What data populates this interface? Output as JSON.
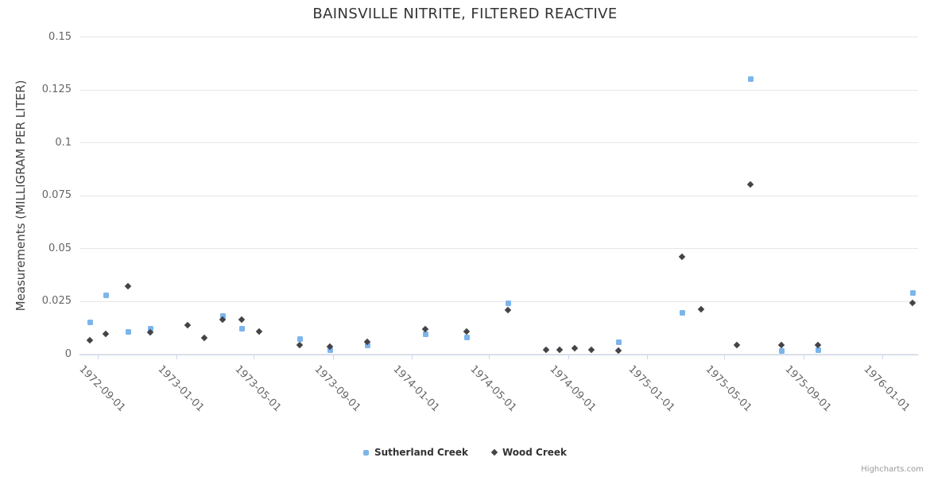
{
  "title": "BAINSVILLE NITRITE, FILTERED REACTIVE",
  "credits": "Highcharts.com",
  "chart_data": {
    "type": "scatter",
    "title": "BAINSVILLE NITRITE, FILTERED REACTIVE",
    "xlabel": "",
    "ylabel": "Measurements (MILLIGRAM PER LITER)",
    "x_type": "datetime",
    "ylim": [
      0,
      0.15
    ],
    "grid": "horizontal-only",
    "legend_position": "bottom-center",
    "y_ticks": [
      {
        "value": 0,
        "label": "0"
      },
      {
        "value": 0.025,
        "label": "0.025"
      },
      {
        "value": 0.05,
        "label": "0.05"
      },
      {
        "value": 0.075,
        "label": "0.075"
      },
      {
        "value": 0.1,
        "label": "0.1"
      },
      {
        "value": 0.125,
        "label": "0.125"
      },
      {
        "value": 0.15,
        "label": "0.15"
      }
    ],
    "x_ticks": [
      "1972-09-01",
      "1973-01-01",
      "1973-05-01",
      "1973-09-01",
      "1974-01-01",
      "1974-05-01",
      "1974-09-01",
      "1975-01-01",
      "1975-05-01",
      "1975-09-01",
      "1976-01-01"
    ],
    "series": [
      {
        "name": "Sutherland Creek",
        "color": "#7cb5ec",
        "marker": "square",
        "data": [
          [
            "1972-08-20",
            0.015
          ],
          [
            "1972-09-13",
            0.028
          ],
          [
            "1972-10-18",
            0.0105
          ],
          [
            "1972-11-22",
            0.012
          ],
          [
            "1973-03-14",
            0.018
          ],
          [
            "1973-04-12",
            0.012
          ],
          [
            "1973-07-11",
            0.007
          ],
          [
            "1973-08-27",
            0.002
          ],
          [
            "1973-10-25",
            0.004
          ],
          [
            "1974-01-23",
            0.0095
          ],
          [
            "1974-03-27",
            0.008
          ],
          [
            "1974-05-31",
            0.024
          ],
          [
            "1974-11-18",
            0.0055
          ],
          [
            "1975-02-25",
            0.0195
          ],
          [
            "1975-06-11",
            0.13
          ],
          [
            "1975-07-29",
            0.0015
          ],
          [
            "1975-09-24",
            0.002
          ],
          [
            "1976-02-17",
            0.029
          ]
        ]
      },
      {
        "name": "Wood Creek",
        "color": "#434348",
        "marker": "diamond",
        "data": [
          [
            "1972-08-20",
            0.0065
          ],
          [
            "1972-09-13",
            0.0095
          ],
          [
            "1972-10-18",
            0.032
          ],
          [
            "1972-11-22",
            0.01
          ],
          [
            "1973-01-19",
            0.0135
          ],
          [
            "1973-02-14",
            0.0075
          ],
          [
            "1973-03-14",
            0.016
          ],
          [
            "1973-04-12",
            0.016
          ],
          [
            "1973-05-10",
            0.0105
          ],
          [
            "1973-07-11",
            0.004
          ],
          [
            "1973-08-27",
            0.0035
          ],
          [
            "1973-10-25",
            0.0055
          ],
          [
            "1974-01-23",
            0.0115
          ],
          [
            "1974-03-27",
            0.0105
          ],
          [
            "1974-05-31",
            0.0205
          ],
          [
            "1974-07-29",
            0.002
          ],
          [
            "1974-08-19",
            0.002
          ],
          [
            "1974-09-11",
            0.0025
          ],
          [
            "1974-10-07",
            0.002
          ],
          [
            "1974-11-18",
            0.0015
          ],
          [
            "1975-02-25",
            0.046
          ],
          [
            "1975-03-26",
            0.021
          ],
          [
            "1975-05-21",
            0.004
          ],
          [
            "1975-06-11",
            0.08
          ],
          [
            "1975-07-29",
            0.004
          ],
          [
            "1975-09-24",
            0.004
          ],
          [
            "1976-02-17",
            0.024
          ]
        ]
      }
    ]
  }
}
